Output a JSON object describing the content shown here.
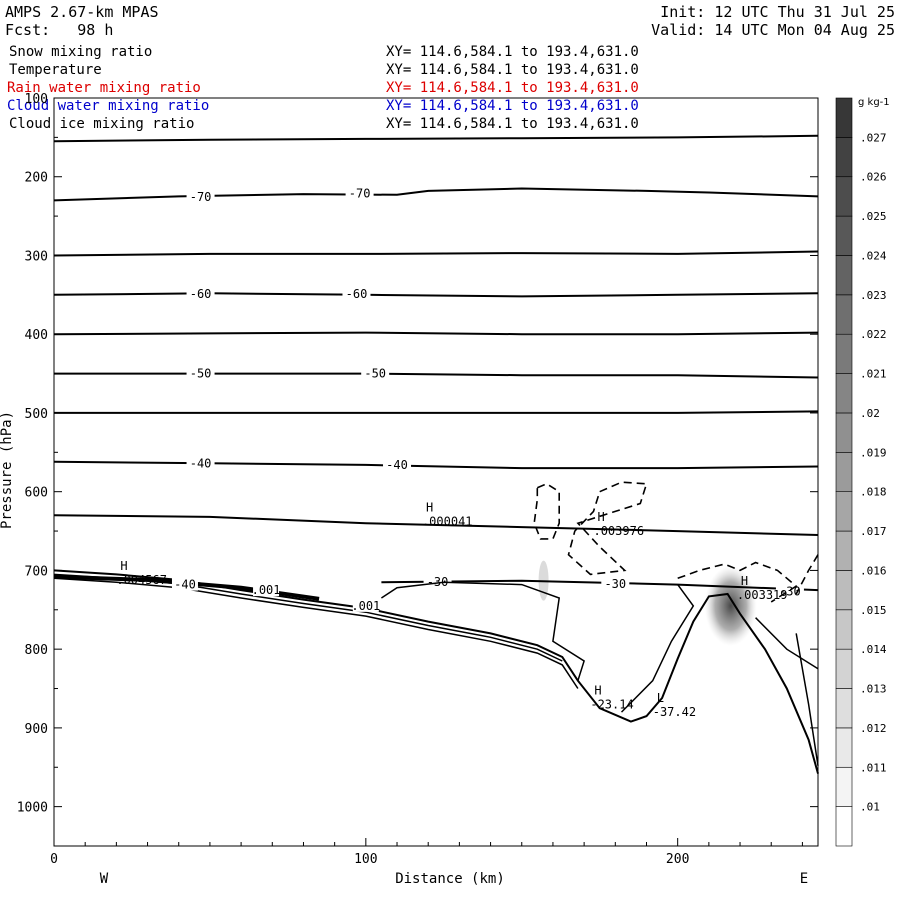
{
  "header": {
    "model": "AMPS 2.67-km MPAS",
    "fcst_label": "Fcst:",
    "fcst_value": "98 h",
    "init": "Init: 12 UTC Thu 31 Jul 25",
    "valid": "Valid: 14 UTC Mon 04 Aug 25"
  },
  "fields": [
    {
      "name": "Snow mixing ratio",
      "xy": "XY= 114.6,584.1 to 193.4,631.0",
      "color": "#000000"
    },
    {
      "name": "Temperature",
      "xy": "XY= 114.6,584.1 to 193.4,631.0",
      "color": "#000000"
    },
    {
      "name": "Rain water mixing ratio",
      "xy": "XY= 114.6,584.1 to 193.4,631.0",
      "color": "#dd0000"
    },
    {
      "name": "Cloud water mixing ratio",
      "xy": "XY= 114.6,584.1 to 193.4,631.0",
      "color": "#0000cc"
    },
    {
      "name": "Cloud ice mixing ratio",
      "xy": "XY= 114.6,584.1 to 193.4,631.0",
      "color": "#000000"
    }
  ],
  "chart_data": {
    "type": "cross-section",
    "xlabel": "Distance (km)",
    "ylabel": "Pressure (hPa)",
    "xlim": [
      0,
      245
    ],
    "ylim": [
      100,
      1050
    ],
    "xticks": [
      0,
      100,
      200
    ],
    "yticks": [
      100,
      200,
      300,
      400,
      500,
      600,
      700,
      800,
      900,
      1000
    ],
    "direction_left": "W",
    "direction_right": "E",
    "colorbar": {
      "unit": "g kg-1",
      "levels": [
        ".01",
        ".011",
        ".012",
        ".013",
        ".014",
        ".015",
        ".016",
        ".017",
        ".018",
        ".019",
        ".02",
        ".021",
        ".022",
        ".023",
        ".024",
        ".025",
        ".026",
        ".027"
      ]
    },
    "temperature_contours": [
      {
        "points": [
          [
            0,
            155
          ],
          [
            50,
            153
          ],
          [
            100,
            152
          ],
          [
            150,
            151
          ],
          [
            200,
            150
          ],
          [
            245,
            148
          ]
        ]
      },
      {
        "points": [
          [
            0,
            230
          ],
          [
            40,
            225
          ],
          [
            80,
            222
          ],
          [
            110,
            223
          ],
          [
            120,
            218
          ],
          [
            150,
            215
          ],
          [
            190,
            218
          ],
          [
            210,
            220
          ],
          [
            245,
            225
          ]
        ],
        "label": "-70",
        "label_at": [
          [
            47,
            226
          ],
          [
            98,
            221
          ]
        ]
      },
      {
        "points": [
          [
            0,
            300
          ],
          [
            50,
            298
          ],
          [
            100,
            298
          ],
          [
            150,
            297
          ],
          [
            200,
            298
          ],
          [
            245,
            295
          ]
        ]
      },
      {
        "points": [
          [
            0,
            350
          ],
          [
            50,
            348
          ],
          [
            100,
            350
          ],
          [
            150,
            352
          ],
          [
            200,
            350
          ],
          [
            245,
            348
          ]
        ],
        "label": "-60",
        "label_at": [
          [
            47,
            349
          ],
          [
            97,
            349
          ]
        ]
      },
      {
        "points": [
          [
            0,
            400
          ],
          [
            50,
            399
          ],
          [
            100,
            398
          ],
          [
            150,
            400
          ],
          [
            200,
            400
          ],
          [
            245,
            398
          ]
        ]
      },
      {
        "points": [
          [
            0,
            450
          ],
          [
            50,
            450
          ],
          [
            100,
            450
          ],
          [
            150,
            452
          ],
          [
            200,
            452
          ],
          [
            245,
            455
          ]
        ],
        "label": "-50",
        "label_at": [
          [
            47,
            450
          ],
          [
            103,
            450
          ]
        ]
      },
      {
        "points": [
          [
            0,
            500
          ],
          [
            50,
            500
          ],
          [
            100,
            500
          ],
          [
            150,
            500
          ],
          [
            200,
            500
          ],
          [
            245,
            498
          ]
        ]
      },
      {
        "points": [
          [
            0,
            562
          ],
          [
            50,
            564
          ],
          [
            100,
            566
          ],
          [
            150,
            570
          ],
          [
            200,
            570
          ],
          [
            245,
            568
          ]
        ],
        "label": "-40",
        "label_at": [
          [
            47,
            564
          ],
          [
            110,
            566
          ]
        ]
      },
      {
        "points": [
          [
            0,
            630
          ],
          [
            50,
            632
          ],
          [
            100,
            640
          ],
          [
            150,
            645
          ],
          [
            200,
            650
          ],
          [
            245,
            655
          ]
        ]
      },
      {
        "points": [
          [
            105,
            715
          ],
          [
            150,
            713
          ],
          [
            200,
            718
          ],
          [
            245,
            725
          ]
        ],
        "label": "-30",
        "label_at": [
          [
            123,
            715
          ],
          [
            180,
            717
          ],
          [
            236,
            727
          ]
        ]
      }
    ],
    "snow_contours": [
      {
        "points": [
          [
            155,
            595
          ],
          [
            158,
            590
          ],
          [
            162,
            600
          ],
          [
            162,
            640
          ],
          [
            160,
            660
          ],
          [
            156,
            660
          ],
          [
            154,
            640
          ],
          [
            155,
            610
          ],
          [
            155,
            595
          ]
        ]
      },
      {
        "points": [
          [
            175,
            600
          ],
          [
            182,
            588
          ],
          [
            190,
            590
          ],
          [
            188,
            615
          ],
          [
            180,
            625
          ],
          [
            168,
            640
          ],
          [
            175,
            670
          ],
          [
            183,
            700
          ],
          [
            172,
            705
          ],
          [
            165,
            680
          ],
          [
            167,
            650
          ],
          [
            173,
            625
          ],
          [
            175,
            600
          ]
        ]
      },
      {
        "points": [
          [
            200,
            710
          ],
          [
            207,
            700
          ],
          [
            215,
            692
          ],
          [
            220,
            700
          ],
          [
            225,
            690
          ],
          [
            232,
            700
          ],
          [
            238,
            720
          ],
          [
            230,
            740
          ]
        ]
      },
      {
        "points": [
          [
            245,
            680
          ],
          [
            242,
            700
          ],
          [
            238,
            730
          ]
        ]
      }
    ],
    "terrain": [
      [
        0,
        700
      ],
      [
        20,
        705
      ],
      [
        40,
        712
      ],
      [
        60,
        725
      ],
      [
        80,
        737
      ],
      [
        100,
        748
      ],
      [
        120,
        765
      ],
      [
        140,
        780
      ],
      [
        155,
        795
      ],
      [
        163,
        810
      ],
      [
        168,
        840
      ],
      [
        175,
        875
      ],
      [
        185,
        892
      ],
      [
        190,
        885
      ],
      [
        195,
        862
      ],
      [
        200,
        812
      ],
      [
        205,
        765
      ],
      [
        210,
        733
      ],
      [
        216,
        730
      ],
      [
        220,
        755
      ],
      [
        228,
        800
      ],
      [
        235,
        850
      ],
      [
        242,
        915
      ],
      [
        245,
        958
      ]
    ],
    "rain_labels": [
      "0.001"
    ],
    "extrema": [
      {
        "type": "H",
        "value": ".000041",
        "x": 118,
        "y": 638
      },
      {
        "type": "H",
        "value": ".003976",
        "x": 173,
        "y": 650
      },
      {
        "type": "H",
        "value": ".004567",
        "x": 20,
        "y": 712
      },
      {
        "type": "H",
        "value": ".003319",
        "x": 219,
        "y": 731
      },
      {
        "type": "H",
        "value": "-23.14",
        "x": 172,
        "y": 870
      },
      {
        "type": "L",
        "value": "-37.42",
        "x": 192,
        "y": 880
      }
    ],
    "contour_labels_inline": [
      "-40",
      ".001",
      "-30"
    ]
  }
}
